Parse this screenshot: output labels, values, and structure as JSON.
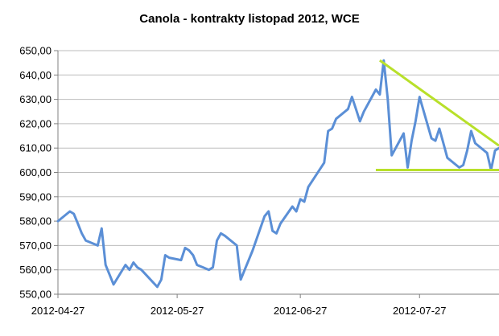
{
  "chart_data": {
    "type": "line",
    "title": "Canola - kontrakty listopad 2012, WCE",
    "xlabel": "",
    "ylabel": "",
    "ylim": [
      550,
      650
    ],
    "y_ticks": [
      "650,00",
      "640,00",
      "630,00",
      "620,00",
      "610,00",
      "600,00",
      "590,00",
      "580,00",
      "570,00",
      "560,00",
      "550,00"
    ],
    "x_ticks": [
      "2012-04-27",
      "2012-05-27",
      "2012-06-27",
      "2012-07-27"
    ],
    "x_range": [
      "2012-04-27",
      "2012-08-16"
    ],
    "grid": true,
    "legend": "none",
    "series": [
      {
        "color": "#5b8fd6",
        "x": [
          "2012-04-27",
          "2012-04-30",
          "2012-05-01",
          "2012-05-02",
          "2012-05-03",
          "2012-05-04",
          "2012-05-07",
          "2012-05-08",
          "2012-05-09",
          "2012-05-10",
          "2012-05-11",
          "2012-05-14",
          "2012-05-15",
          "2012-05-16",
          "2012-05-17",
          "2012-05-18",
          "2012-05-22",
          "2012-05-23",
          "2012-05-24",
          "2012-05-25",
          "2012-05-28",
          "2012-05-29",
          "2012-05-30",
          "2012-05-31",
          "2012-06-01",
          "2012-06-04",
          "2012-06-05",
          "2012-06-06",
          "2012-06-07",
          "2012-06-08",
          "2012-06-11",
          "2012-06-12",
          "2012-06-13",
          "2012-06-14",
          "2012-06-15",
          "2012-06-18",
          "2012-06-19",
          "2012-06-20",
          "2012-06-21",
          "2012-06-22",
          "2012-06-25",
          "2012-06-26",
          "2012-06-27",
          "2012-06-28",
          "2012-06-29",
          "2012-07-03",
          "2012-07-04",
          "2012-07-05",
          "2012-07-06",
          "2012-07-09",
          "2012-07-10",
          "2012-07-11",
          "2012-07-12",
          "2012-07-13",
          "2012-07-16",
          "2012-07-17",
          "2012-07-18",
          "2012-07-19",
          "2012-07-20",
          "2012-07-23",
          "2012-07-24",
          "2012-07-25",
          "2012-07-26",
          "2012-07-27",
          "2012-07-30",
          "2012-07-31",
          "2012-08-01",
          "2012-08-02",
          "2012-08-03",
          "2012-08-06",
          "2012-08-07",
          "2012-08-08",
          "2012-08-09",
          "2012-08-10",
          "2012-08-13",
          "2012-08-14",
          "2012-08-15",
          "2012-08-16"
        ],
        "values": [
          580,
          584,
          583,
          579,
          575,
          572,
          570,
          577,
          562,
          558,
          554,
          562,
          560,
          563,
          561,
          560,
          553,
          556,
          566,
          565,
          564,
          569,
          568,
          566,
          562,
          560,
          561,
          572,
          575,
          574,
          570,
          556,
          560,
          564,
          568,
          582,
          584,
          576,
          575,
          579,
          586,
          584,
          589,
          588,
          594,
          604,
          617,
          618,
          622,
          626,
          631,
          626,
          621,
          625,
          634,
          632,
          646,
          630,
          607,
          616,
          602,
          613,
          621,
          631,
          614,
          613,
          618,
          612,
          606,
          602,
          603,
          609,
          617,
          612,
          608,
          601,
          609,
          610
        ]
      }
    ],
    "annotations": [
      {
        "type": "trendline",
        "color": "#b8e02a",
        "x": [
          "2012-07-17",
          "2012-08-16"
        ],
        "values": [
          646,
          611
        ]
      },
      {
        "type": "trendline",
        "color": "#b8e02a",
        "x": [
          "2012-07-16",
          "2012-08-16"
        ],
        "values": [
          601,
          601
        ]
      }
    ]
  }
}
